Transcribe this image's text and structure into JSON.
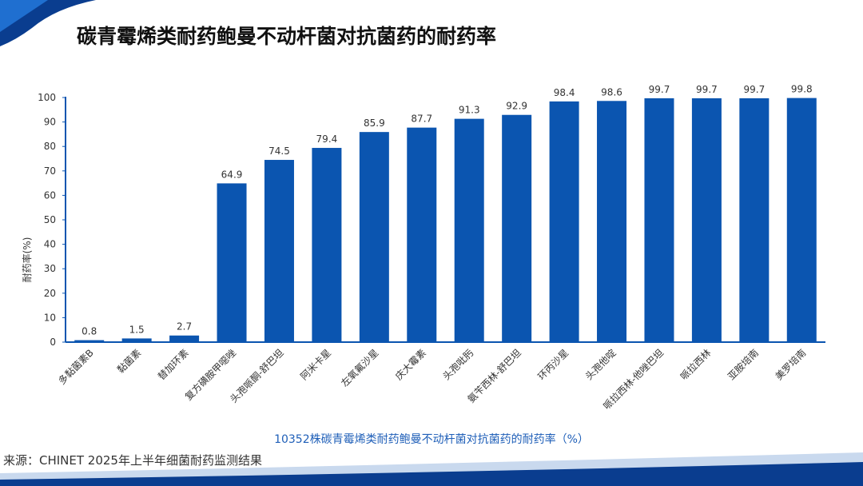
{
  "page": {
    "title": "碳青霉烯类耐药鲍曼不动杆菌对抗菌药的耐药率",
    "caption": "10352株碳青霉烯类耐药鲍曼不动杆菌对抗菌药的耐药率（%）",
    "source": "来源：CHINET 2025年上半年细菌耐药监测结果"
  },
  "colors": {
    "bar": "#0b55b0",
    "accent": "#1f5fb8",
    "band_dark": "#0a3d8f",
    "band_light": "#c9d9ee"
  },
  "chart_data": {
    "type": "bar",
    "categories": [
      "多黏菌素B",
      "黏菌素",
      "替加环素",
      "复方磺胺甲噁唑",
      "头孢哌酮-舒巴坦",
      "阿米卡星",
      "左氧氟沙星",
      "庆大霉素",
      "头孢吡肟",
      "氨苄西林-舒巴坦",
      "环丙沙星",
      "头孢他啶",
      "哌拉西林-他唑巴坦",
      "哌拉西林",
      "亚胺培南",
      "美罗培南"
    ],
    "values": [
      0.8,
      1.5,
      2.7,
      64.9,
      74.5,
      79.4,
      85.9,
      87.7,
      91.3,
      92.9,
      98.4,
      98.6,
      99.7,
      99.7,
      99.7,
      99.8
    ],
    "ylabel": "耐药率(%)",
    "ylim": [
      0,
      100
    ],
    "yticks": [
      0,
      10,
      20,
      30,
      40,
      50,
      60,
      70,
      80,
      90,
      100
    ],
    "grid": false,
    "legend": "none"
  }
}
